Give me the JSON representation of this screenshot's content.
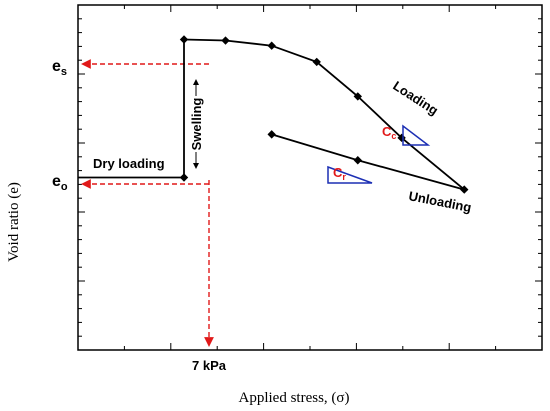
{
  "chart_data": {
    "type": "line",
    "title": "",
    "xlabel": "Applied stress, (σ)",
    "ylabel": "Void ratio (e)",
    "xscale": "log",
    "grid": false,
    "ylim": [
      0,
      1
    ],
    "x_tick_labels": [
      "7 kPa"
    ],
    "y_tick_labels": [
      {
        "base": "e",
        "sub": "s"
      },
      {
        "base": "e",
        "sub": "o"
      }
    ],
    "series": [
      {
        "name": "",
        "points": [
          {
            "x": 1.0,
            "y": 0.5
          },
          {
            "x": 7,
            "y": 0.5
          }
        ]
      },
      {
        "name": "",
        "points": [
          {
            "x": 7,
            "y": 0.5
          },
          {
            "x": 7,
            "y": 0.9
          }
        ]
      },
      {
        "name": "",
        "points": [
          {
            "x": 7,
            "y": 0.9
          },
          {
            "x": 15,
            "y": 0.897
          },
          {
            "x": 35,
            "y": 0.882
          },
          {
            "x": 80,
            "y": 0.835
          },
          {
            "x": 170,
            "y": 0.735
          },
          {
            "x": 380,
            "y": 0.615
          },
          {
            "x": 1200,
            "y": 0.465
          }
        ]
      },
      {
        "name": "",
        "points": [
          {
            "x": 1200,
            "y": 0.465
          },
          {
            "x": 170,
            "y": 0.55
          },
          {
            "x": 35,
            "y": 0.625
          }
        ]
      }
    ],
    "annotations": {
      "dry_loading": "Dry loading",
      "swelling": "Swelling",
      "loading": "Loading",
      "unloading": "Unloading",
      "cc": {
        "base": "C",
        "sub": "c"
      },
      "cr": {
        "base": "C",
        "sub": "r"
      }
    },
    "colors": {
      "curve": "#000000",
      "guide": "#e11919",
      "triangle": "#1c2fb4",
      "label_red": "#e11919"
    }
  }
}
